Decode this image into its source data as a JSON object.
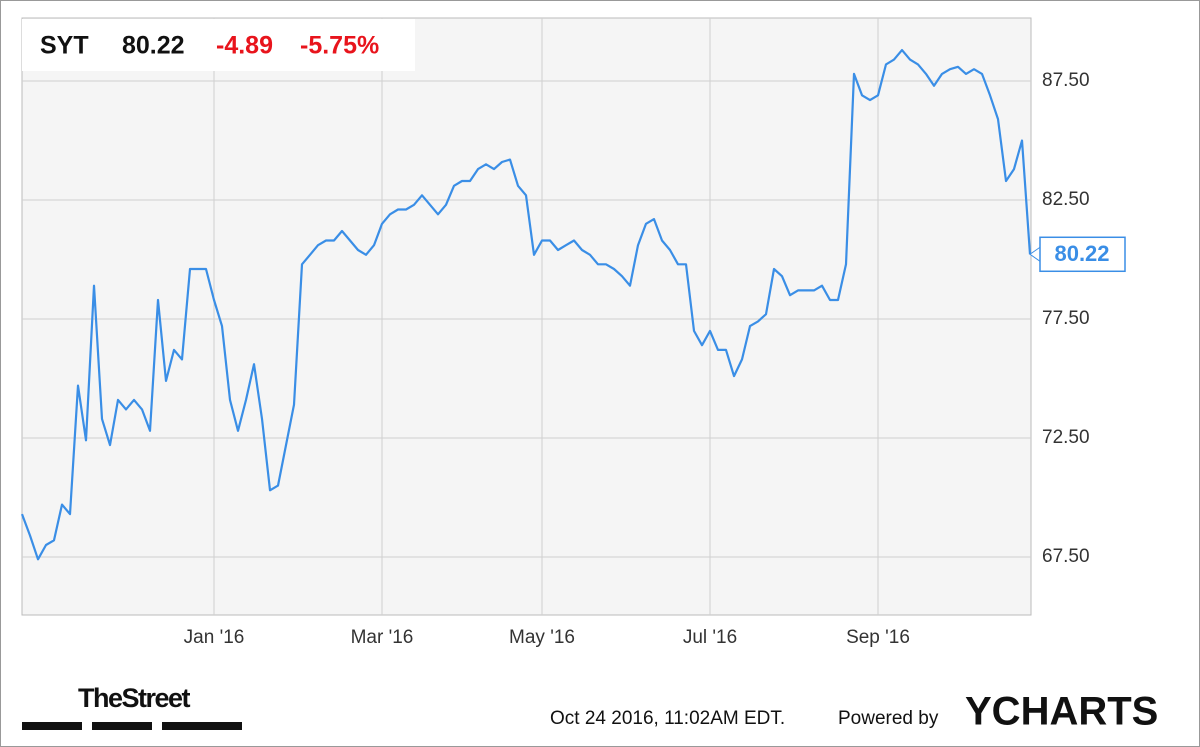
{
  "chart_data": {
    "type": "line",
    "ticker": "SYT",
    "price": "80.22",
    "change": "-4.89",
    "change_percent": "-5.75%",
    "timestamp": "Oct 24 2016, 11:02AM EDT.",
    "powered_by": "Powered by",
    "brand": "YCHARTS",
    "publisher": "TheStreet",
    "categories": [
      null,
      null,
      null,
      null,
      null,
      null,
      null,
      null,
      null,
      null,
      null,
      null,
      null,
      null,
      null,
      null,
      null,
      null,
      null,
      null,
      null,
      null,
      null,
      null,
      "Jan '16",
      null,
      null,
      null,
      null,
      null,
      null,
      null,
      null,
      null,
      null,
      null,
      null,
      null,
      null,
      null,
      null,
      null,
      null,
      null,
      null,
      "Mar '16",
      null,
      null,
      null,
      null,
      null,
      null,
      null,
      null,
      null,
      null,
      null,
      null,
      null,
      null,
      null,
      null,
      null,
      null,
      null,
      "May '16",
      null,
      null,
      null,
      null,
      null,
      null,
      null,
      null,
      null,
      null,
      null,
      null,
      null,
      null,
      null,
      null,
      null,
      null,
      null,
      null,
      "Jul '16",
      null,
      null,
      null,
      null,
      null,
      null,
      null,
      null,
      null,
      null,
      null,
      null,
      null,
      null,
      null,
      null,
      null,
      null,
      null,
      null,
      "Sep '16",
      null,
      null,
      null,
      null,
      null,
      null,
      null,
      null,
      null,
      null,
      null,
      null,
      null,
      null,
      null,
      null,
      null,
      null,
      null
    ],
    "series": [
      {
        "name": "SYT",
        "color": "#3a8ee6",
        "values": [
          69.3,
          68.4,
          67.4,
          68.0,
          68.2,
          69.7,
          69.3,
          74.7,
          72.4,
          78.9,
          73.3,
          72.2,
          74.1,
          73.7,
          74.1,
          73.7,
          72.8,
          78.3,
          74.9,
          76.2,
          75.8,
          79.6,
          79.6,
          79.6,
          78.3,
          77.2,
          74.1,
          72.8,
          74.1,
          75.6,
          73.3,
          70.3,
          70.5,
          72.2,
          73.9,
          79.8,
          80.2,
          80.6,
          80.8,
          80.8,
          81.2,
          80.8,
          80.4,
          80.2,
          80.6,
          81.5,
          81.9,
          82.1,
          82.1,
          82.3,
          82.7,
          82.3,
          81.9,
          82.3,
          83.1,
          83.3,
          83.3,
          83.8,
          84.0,
          83.8,
          84.1,
          84.2,
          83.1,
          82.7,
          80.2,
          80.8,
          80.8,
          80.4,
          80.6,
          80.8,
          80.4,
          80.2,
          79.8,
          79.8,
          79.6,
          79.3,
          78.9,
          80.6,
          81.5,
          81.7,
          80.8,
          80.4,
          79.8,
          79.8,
          77.0,
          76.4,
          77.0,
          76.2,
          76.2,
          75.1,
          75.8,
          77.2,
          77.4,
          77.7,
          79.6,
          79.3,
          78.5,
          78.7,
          78.7,
          78.7,
          78.9,
          78.3,
          78.3,
          79.8,
          87.8,
          86.9,
          86.7,
          86.9,
          88.2,
          88.4,
          88.8,
          88.4,
          88.2,
          87.8,
          87.3,
          87.8,
          88.0,
          88.1,
          87.8,
          88.0,
          87.8,
          86.9,
          85.9,
          83.3,
          83.8,
          85.0,
          80.22
        ]
      }
    ],
    "ylim": [
      65.06,
      90.15
    ],
    "yticks": [
      {
        "value": 67.5,
        "label": "67.50"
      },
      {
        "value": 72.5,
        "label": "72.50"
      },
      {
        "value": 77.5,
        "label": "77.50"
      },
      {
        "value": 82.5,
        "label": "82.50"
      },
      {
        "value": 87.5,
        "label": "87.50"
      }
    ],
    "grid": true
  }
}
